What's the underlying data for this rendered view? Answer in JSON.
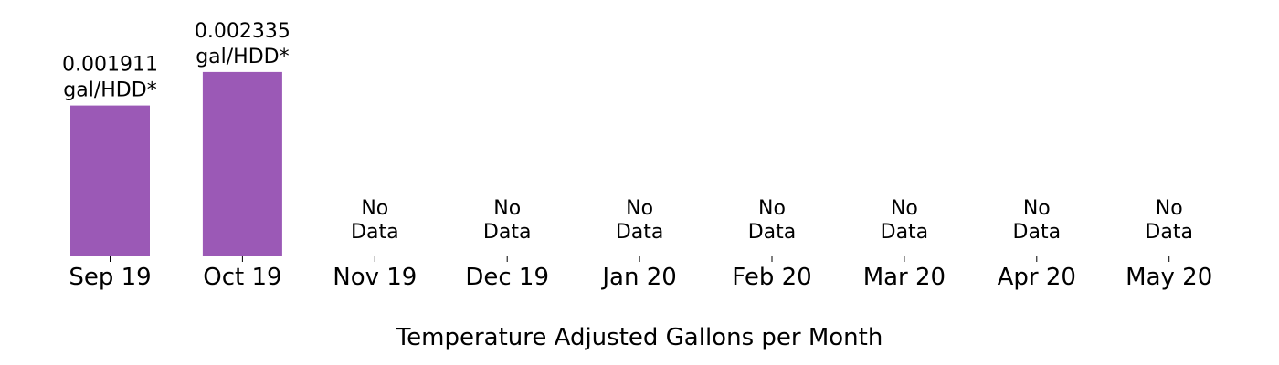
{
  "chart_data": {
    "type": "bar",
    "categories": [
      "Sep 19",
      "Oct 19",
      "Nov 19",
      "Dec 19",
      "Jan 20",
      "Feb 20",
      "Mar 20",
      "Apr 20",
      "May 20"
    ],
    "values": [
      0.001911,
      0.002335,
      null,
      null,
      null,
      null,
      null,
      null,
      null
    ],
    "value_labels": [
      "0.001911\ngal/HDD*",
      "0.002335\ngal/HDD*",
      "",
      "",
      "",
      "",
      "",
      "",
      ""
    ],
    "missing_label": "No\nData",
    "xlabel": "Temperature Adjusted Gallons per Month",
    "ylabel": "",
    "title": "",
    "ylim": [
      0,
      0.0029
    ],
    "grid": false,
    "colors": {
      "bar": "#9b59b6"
    }
  }
}
